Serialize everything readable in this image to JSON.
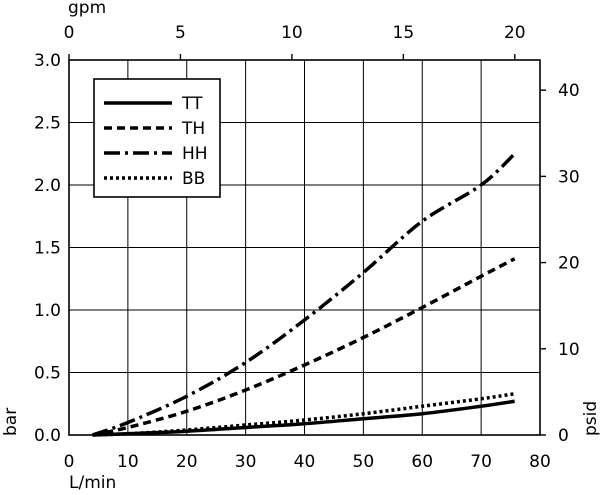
{
  "chart_data": {
    "type": "line",
    "title": "",
    "x_axis_bottom": {
      "label": "L/min",
      "range": [
        0,
        80
      ],
      "ticks": [
        0,
        10,
        20,
        30,
        40,
        50,
        60,
        70,
        80
      ]
    },
    "x_axis_top": {
      "label": "gpm",
      "range": [
        0,
        21.13
      ],
      "ticks": [
        0,
        5,
        10,
        15,
        20
      ]
    },
    "y_axis_left": {
      "label": "bar",
      "range": [
        0,
        3.0
      ],
      "ticks": [
        "0.0",
        "0.5",
        "1.0",
        "1.5",
        "2.0",
        "2.5",
        "3.0"
      ]
    },
    "y_axis_right": {
      "label": "psid",
      "range": [
        0,
        43.5
      ],
      "ticks": [
        0,
        10,
        20,
        30,
        40
      ]
    },
    "grid": true,
    "legend_position": "top-left",
    "series": [
      {
        "name": "TT",
        "dash": "solid",
        "x": [
          4,
          10,
          20,
          30,
          40,
          50,
          60,
          70,
          75.7
        ],
        "y": [
          0.0,
          0.01,
          0.03,
          0.06,
          0.09,
          0.13,
          0.17,
          0.23,
          0.27
        ]
      },
      {
        "name": "TH",
        "dash": "dash",
        "x": [
          4,
          10,
          20,
          30,
          40,
          50,
          60,
          70,
          75.7
        ],
        "y": [
          0.0,
          0.06,
          0.19,
          0.36,
          0.56,
          0.78,
          1.02,
          1.27,
          1.41
        ]
      },
      {
        "name": "HH",
        "dash": "dashdot",
        "x": [
          4,
          10,
          20,
          30,
          40,
          50,
          60,
          70,
          75.7
        ],
        "y": [
          0.0,
          0.1,
          0.31,
          0.58,
          0.92,
          1.3,
          1.71,
          2.0,
          2.25
        ]
      },
      {
        "name": "BB",
        "dash": "dot",
        "x": [
          4,
          10,
          20,
          30,
          40,
          50,
          60,
          70,
          75.7
        ],
        "y": [
          0.0,
          0.01,
          0.04,
          0.08,
          0.12,
          0.17,
          0.23,
          0.29,
          0.33
        ]
      }
    ]
  }
}
